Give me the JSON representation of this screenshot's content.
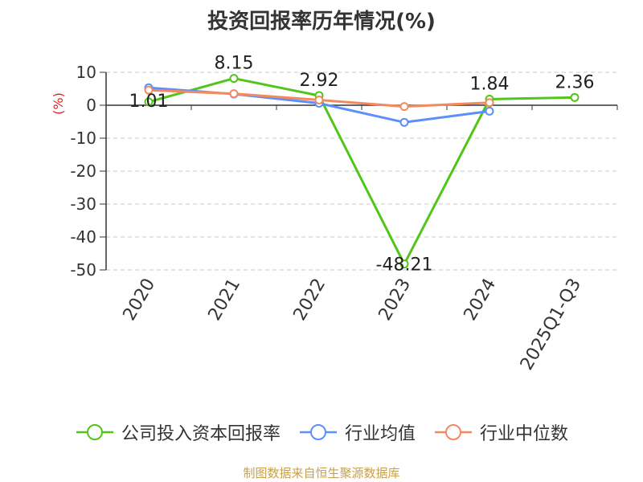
{
  "chart_data": {
    "type": "line",
    "title": "投资回报率历年情况(%)",
    "ylabel": "(%)",
    "xlabel": "",
    "categories": [
      "2020",
      "2021",
      "2022",
      "2023",
      "2024",
      "2025Q1-Q3"
    ],
    "ylim": [
      -50,
      10
    ],
    "yticks": [
      10,
      0,
      -10,
      -20,
      -30,
      -40,
      -50
    ],
    "grid": true,
    "legend_position": "bottom",
    "series": [
      {
        "name": "公司投入资本回报率",
        "color": "#52c41a",
        "values": [
          1.01,
          8.15,
          2.92,
          -48.21,
          1.84,
          2.36
        ],
        "labels": [
          "1.01",
          "8.15",
          "2.92",
          "-48.21",
          "1.84",
          "2.36"
        ]
      },
      {
        "name": "行业均值",
        "color": "#5b8ff9",
        "values": [
          5.3,
          3.4,
          0.6,
          -5.2,
          -1.8,
          null
        ]
      },
      {
        "name": "行业中位数",
        "color": "#f4895f",
        "values": [
          4.6,
          3.5,
          1.6,
          -0.4,
          0.8,
          null
        ]
      }
    ]
  },
  "source_note": "制图数据来自恒生聚源数据库",
  "colors": {
    "source_note": "#c8a04a",
    "ylabel": "#e02020"
  }
}
